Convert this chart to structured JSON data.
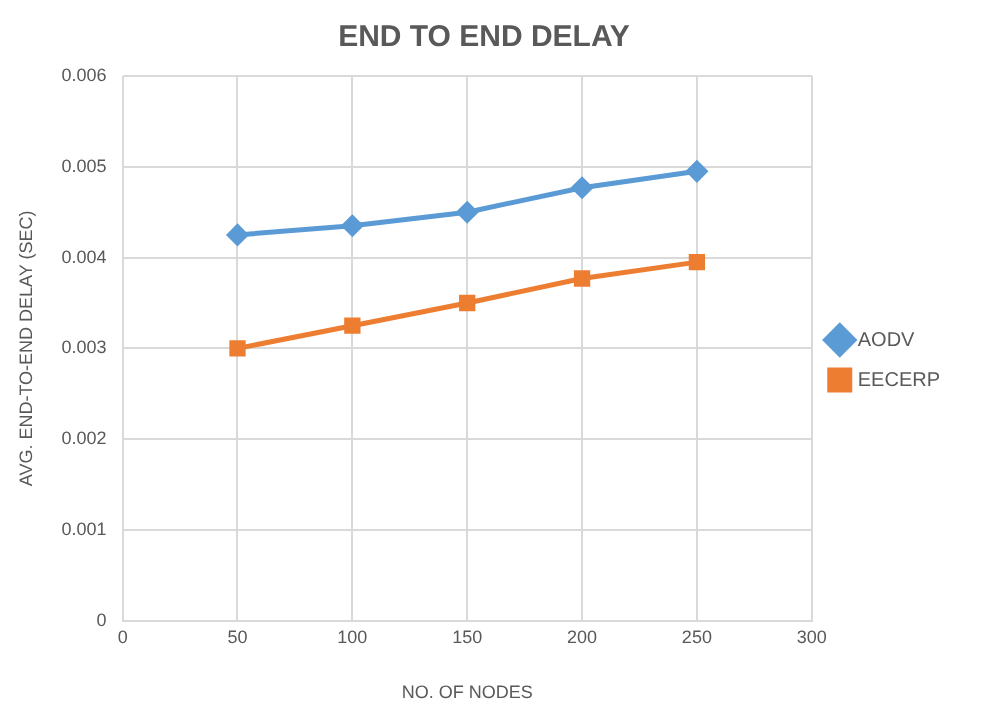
{
  "chart_data": {
    "type": "line",
    "title": "END TO END DELAY",
    "xlabel": "NO. OF NODES",
    "ylabel": "AVG. END-TO-END DELAY (SEC)",
    "x": [
      50,
      100,
      150,
      200,
      250
    ],
    "series": [
      {
        "name": "AODV",
        "color": "#5b9bd5",
        "marker": "diamond",
        "values": [
          0.00425,
          0.00435,
          0.0045,
          0.00477,
          0.00495
        ]
      },
      {
        "name": "EECERP",
        "color": "#ed7d31",
        "marker": "square",
        "values": [
          0.003,
          0.00325,
          0.0035,
          0.00377,
          0.00395
        ]
      }
    ],
    "xlim": [
      0,
      300
    ],
    "xticks": [
      0,
      50,
      100,
      150,
      200,
      250,
      300
    ],
    "ylim": [
      0,
      0.006
    ],
    "yticks": [
      0,
      0.001,
      0.002,
      0.003,
      0.004,
      0.005,
      0.006
    ],
    "grid": true,
    "legend": "right"
  }
}
